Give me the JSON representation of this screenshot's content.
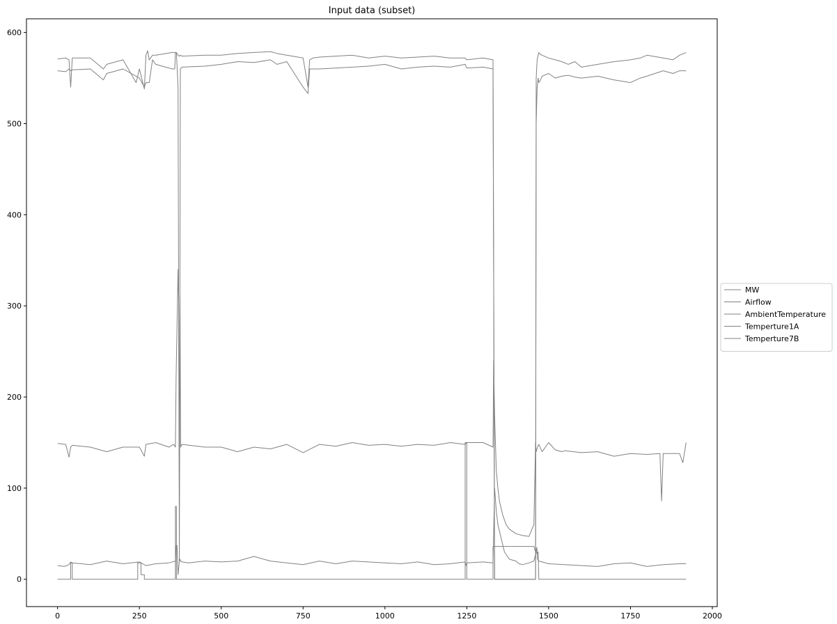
{
  "chart_data": {
    "type": "line",
    "title": "Input data (subset)",
    "xlabel": "",
    "ylabel": "",
    "xlim": [
      -95,
      2015
    ],
    "ylim": [
      -30,
      615
    ],
    "xticks": [
      0,
      250,
      500,
      750,
      1000,
      1250,
      1500,
      1750,
      2000
    ],
    "yticks": [
      0,
      100,
      200,
      300,
      400,
      500,
      600
    ],
    "grid": false,
    "legend_position": "right",
    "line_color": "#808080",
    "series": [
      {
        "name": "MW",
        "x": [
          0,
          40,
          40,
          45,
          45,
          245,
          245,
          255,
          255,
          265,
          265,
          360,
          360,
          363,
          363,
          372,
          372,
          1245,
          1245,
          1250,
          1250,
          1330,
          1330,
          1340,
          1340,
          1455,
          1460,
          1465,
          1468,
          1470,
          1470,
          1920
        ],
        "y": [
          0,
          0,
          18,
          18,
          0,
          0,
          18,
          18,
          5,
          5,
          0,
          0,
          80,
          80,
          0,
          0,
          0,
          0,
          150,
          150,
          0,
          0,
          36,
          36,
          36,
          36,
          30,
          28,
          30,
          0,
          0,
          0
        ]
      },
      {
        "name": "Airflow",
        "x": [
          0,
          20,
          35,
          40,
          45,
          100,
          150,
          200,
          250,
          270,
          300,
          340,
          360,
          362,
          365,
          368,
          372,
          374,
          376,
          380,
          400,
          450,
          500,
          550,
          600,
          650,
          700,
          750,
          800,
          850,
          900,
          950,
          1000,
          1050,
          1100,
          1150,
          1200,
          1245,
          1248,
          1250,
          1300,
          1330,
          1335,
          1340,
          1345,
          1355,
          1365,
          1380,
          1400,
          1410,
          1420,
          1440,
          1455,
          1462,
          1464,
          1466,
          1470,
          1500,
          1550,
          1600,
          1650,
          1700,
          1750,
          1800,
          1850,
          1900,
          1920
        ],
        "y": [
          15,
          14,
          16,
          19,
          18,
          16,
          20,
          17,
          19,
          15,
          17,
          18,
          20,
          37,
          37,
          5,
          20,
          22,
          20,
          19,
          18,
          20,
          19,
          20,
          25,
          20,
          18,
          16,
          20,
          17,
          20,
          19,
          18,
          17,
          19,
          16,
          17,
          19,
          15,
          18,
          19,
          18,
          100,
          75,
          60,
          45,
          30,
          22,
          20,
          17,
          16,
          18,
          20,
          30,
          35,
          22,
          20,
          17,
          16,
          15,
          14,
          17,
          18,
          14,
          16,
          17,
          17
        ]
      },
      {
        "name": "AmbientTemperature",
        "x": [
          0,
          25,
          35,
          40,
          45,
          100,
          150,
          200,
          250,
          265,
          270,
          300,
          340,
          355,
          360,
          362,
          368,
          370,
          372,
          374,
          376,
          380,
          450,
          500,
          550,
          600,
          650,
          700,
          750,
          800,
          850,
          900,
          950,
          1000,
          1050,
          1100,
          1150,
          1200,
          1245,
          1250,
          1300,
          1330,
          1332,
          1335,
          1340,
          1345,
          1350,
          1360,
          1370,
          1380,
          1400,
          1420,
          1440,
          1455,
          1460,
          1462,
          1466,
          1470,
          1480,
          1500,
          1520,
          1540,
          1550,
          1600,
          1650,
          1700,
          1750,
          1800,
          1840,
          1845,
          1850,
          1880,
          1900,
          1910,
          1920
        ],
        "y": [
          149,
          148,
          134,
          145,
          147,
          145,
          140,
          145,
          145,
          135,
          148,
          150,
          145,
          148,
          145,
          222,
          340,
          300,
          80,
          310,
          145,
          148,
          145,
          145,
          140,
          145,
          143,
          148,
          139,
          148,
          146,
          150,
          147,
          148,
          146,
          148,
          147,
          150,
          148,
          150,
          150,
          145,
          240,
          180,
          120,
          100,
          85,
          70,
          60,
          55,
          50,
          48,
          47,
          60,
          150,
          140,
          145,
          148,
          140,
          150,
          142,
          140,
          141,
          139,
          140,
          135,
          138,
          137,
          138,
          86,
          138,
          138,
          138,
          128,
          150
        ]
      },
      {
        "name": "Temperture1A",
        "x": [
          0,
          25,
          35,
          40,
          45,
          100,
          140,
          150,
          200,
          250,
          265,
          270,
          280,
          290,
          300,
          350,
          358,
          360,
          363,
          368,
          372,
          375,
          380,
          450,
          500,
          550,
          600,
          650,
          670,
          700,
          750,
          765,
          770,
          780,
          800,
          850,
          900,
          950,
          1000,
          1050,
          1100,
          1150,
          1200,
          1245,
          1250,
          1300,
          1330,
          1335,
          1340,
          1345,
          1350,
          1360,
          1370,
          1380,
          1390,
          1400,
          1420,
          1440,
          1455,
          1460,
          1462,
          1465,
          1468,
          1470,
          1475,
          1480,
          1500,
          1520,
          1540,
          1560,
          1580,
          1600,
          1650,
          1700,
          1750,
          1780,
          1800,
          1850,
          1880,
          1900,
          1920
        ],
        "y": [
          558,
          557,
          560,
          558,
          559,
          560,
          548,
          555,
          560,
          550,
          540,
          545,
          545,
          570,
          565,
          560,
          560,
          578,
          578,
          540,
          20,
          560,
          562,
          563,
          565,
          568,
          567,
          570,
          565,
          568,
          540,
          533,
          560,
          560,
          560,
          561,
          562,
          563,
          565,
          560,
          562,
          563,
          562,
          565,
          561,
          562,
          560,
          0,
          0,
          0,
          0,
          0,
          0,
          0,
          0,
          0,
          0,
          0,
          0,
          0,
          500,
          540,
          550,
          545,
          548,
          552,
          555,
          550,
          552,
          553,
          551,
          550,
          552,
          548,
          545,
          550,
          552,
          558,
          555,
          558,
          558
        ]
      },
      {
        "name": "Temperture7B",
        "x": [
          0,
          25,
          35,
          40,
          45,
          100,
          140,
          150,
          200,
          240,
          250,
          265,
          270,
          275,
          280,
          290,
          300,
          350,
          358,
          360,
          363,
          368,
          372,
          375,
          380,
          450,
          500,
          550,
          600,
          650,
          670,
          700,
          750,
          765,
          770,
          780,
          800,
          850,
          900,
          950,
          1000,
          1050,
          1100,
          1150,
          1200,
          1245,
          1250,
          1300,
          1330,
          1335,
          1340,
          1350,
          1370,
          1400,
          1440,
          1455,
          1460,
          1462,
          1465,
          1468,
          1470,
          1475,
          1480,
          1500,
          1520,
          1540,
          1560,
          1580,
          1600,
          1650,
          1700,
          1750,
          1780,
          1800,
          1850,
          1880,
          1900,
          1920
        ],
        "y": [
          571,
          572,
          570,
          540,
          572,
          572,
          560,
          565,
          570,
          545,
          560,
          538,
          575,
          580,
          570,
          575,
          575,
          578,
          578,
          578,
          578,
          575,
          574,
          575,
          574,
          575,
          575,
          577,
          578,
          579,
          577,
          575,
          572,
          540,
          570,
          572,
          573,
          574,
          575,
          572,
          574,
          572,
          573,
          574,
          572,
          572,
          570,
          572,
          570,
          0,
          0,
          0,
          0,
          0,
          0,
          0,
          0,
          550,
          570,
          575,
          578,
          576,
          575,
          572,
          570,
          568,
          565,
          568,
          562,
          565,
          568,
          570,
          572,
          575,
          572,
          570,
          575,
          578
        ]
      }
    ]
  }
}
